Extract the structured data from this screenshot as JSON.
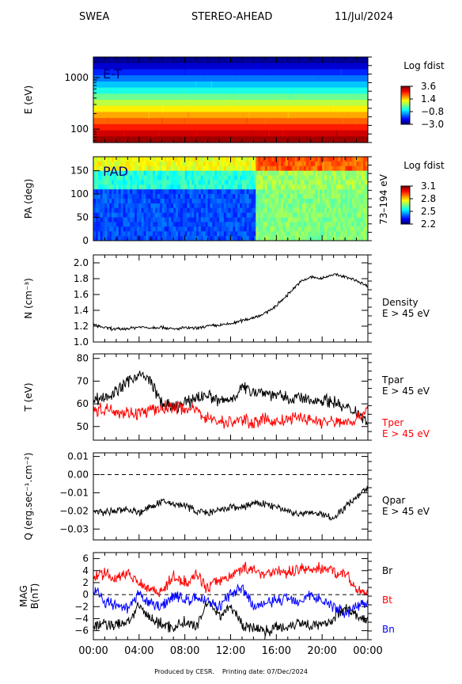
{
  "header": {
    "instrument": "SWEA",
    "spacecraft": "STEREO-AHEAD",
    "date": "11/Jul/2024"
  },
  "footer": {
    "produced": "Produced by CESR.",
    "printing": "Printing date: 07/Dec/2024"
  },
  "colors": {
    "black": "#000000",
    "red": "#ff0000",
    "blue": "#0000ff"
  },
  "chart_data": [
    {
      "type": "heatmap",
      "panel": "E-T",
      "label": "E-T",
      "ylabel": "E (eV)",
      "yscale": "log",
      "yticks": [
        100,
        1000
      ],
      "yticklabels": [
        "100",
        "1000"
      ],
      "colorbar": {
        "title": "Log fdist",
        "ticks": [
          3.6,
          1.4,
          -0.8,
          -3.0
        ],
        "ticklabels": [
          "3.6",
          "1.4",
          "−0.8",
          "−3.0"
        ],
        "range": [
          -3.0,
          3.6
        ]
      }
    },
    {
      "type": "heatmap",
      "panel": "PAD",
      "label": "PAD",
      "ylabel": "PA (deg)",
      "ylim": [
        0,
        180
      ],
      "yticks": [
        0,
        50,
        100,
        150
      ],
      "right_label": "73–194 eV",
      "colorbar": {
        "title": "Log fdist",
        "ticks": [
          3.1,
          2.8,
          2.5,
          2.2
        ],
        "ticklabels": [
          "3.1",
          "2.8",
          "2.5",
          "2.2"
        ],
        "range": [
          2.2,
          3.1
        ]
      }
    },
    {
      "type": "line",
      "panel": "density",
      "ylabel": "N (cm⁻³)",
      "ylim": [
        1.0,
        2.1
      ],
      "yticks": [
        1.0,
        1.2,
        1.4,
        1.6,
        1.8,
        2.0
      ],
      "yticklabels": [
        "1.0",
        "1.2",
        "1.4",
        "1.6",
        "1.8",
        "2.0"
      ],
      "series": [
        {
          "name": "Density",
          "sub": "E > 45 eV",
          "color": "#000000",
          "x": [
            0,
            1,
            2,
            3,
            4,
            5,
            6,
            7,
            8,
            9,
            10,
            11,
            12,
            13,
            14,
            15,
            16,
            17,
            18,
            19,
            20,
            21,
            22,
            23,
            24
          ],
          "values": [
            1.22,
            1.18,
            1.16,
            1.17,
            1.19,
            1.18,
            1.19,
            1.16,
            1.18,
            1.17,
            1.2,
            1.21,
            1.23,
            1.27,
            1.31,
            1.36,
            1.46,
            1.6,
            1.75,
            1.82,
            1.8,
            1.86,
            1.82,
            1.78,
            1.7
          ]
        }
      ]
    },
    {
      "type": "line",
      "panel": "temperature",
      "ylabel": "T (eV)",
      "ylim": [
        44,
        82
      ],
      "yticks": [
        50,
        60,
        70,
        80
      ],
      "yticklabels": [
        "50",
        "60",
        "70",
        "80"
      ],
      "series": [
        {
          "name": "Tpar",
          "sub": "E > 45 eV",
          "color": "#000000",
          "x": [
            0,
            1,
            2,
            3,
            4,
            5,
            6,
            7,
            8,
            9,
            10,
            11,
            12,
            13,
            14,
            15,
            16,
            17,
            18,
            19,
            20,
            21,
            22,
            23,
            24
          ],
          "values": [
            62,
            63,
            65,
            70,
            73,
            70,
            60,
            58,
            60,
            63,
            64,
            61,
            62,
            67,
            66,
            65,
            64,
            62,
            63,
            61,
            62,
            61,
            58,
            57,
            52
          ]
        },
        {
          "name": "Tper",
          "sub": "E > 45 eV",
          "color": "#ff0000",
          "x": [
            0,
            1,
            2,
            3,
            4,
            5,
            6,
            7,
            8,
            9,
            10,
            11,
            12,
            13,
            14,
            15,
            16,
            17,
            18,
            19,
            20,
            21,
            22,
            23,
            24
          ],
          "values": [
            57,
            58,
            57,
            56,
            56,
            57,
            58,
            59,
            58,
            57,
            54,
            52,
            52,
            53,
            52,
            53,
            52,
            53,
            54,
            53,
            52,
            52,
            52,
            53,
            58
          ]
        }
      ]
    },
    {
      "type": "line",
      "panel": "heat-flux",
      "ylabel": "Q (erg.sec⁻¹.cm⁻²)",
      "ylim": [
        -0.036,
        0.012
      ],
      "yticks": [
        0.01,
        0.0,
        -0.01,
        -0.02,
        -0.03
      ],
      "yticklabels": [
        "0.01",
        "0.00",
        "−0.01",
        "−0.02",
        "−0.03"
      ],
      "reference_line": 0.0,
      "series": [
        {
          "name": "Qpar",
          "sub": "E > 45 eV",
          "color": "#000000",
          "x": [
            0,
            1,
            2,
            3,
            4,
            5,
            6,
            7,
            8,
            9,
            10,
            11,
            12,
            13,
            14,
            15,
            16,
            17,
            18,
            19,
            20,
            21,
            22,
            23,
            24
          ],
          "values": [
            -0.02,
            -0.021,
            -0.02,
            -0.019,
            -0.021,
            -0.018,
            -0.015,
            -0.016,
            -0.017,
            -0.02,
            -0.021,
            -0.02,
            -0.018,
            -0.018,
            -0.016,
            -0.016,
            -0.018,
            -0.02,
            -0.022,
            -0.021,
            -0.022,
            -0.024,
            -0.018,
            -0.012,
            -0.007
          ]
        }
      ]
    },
    {
      "type": "line",
      "panel": "magnetic-field",
      "ylabel": "MAG B(nT)",
      "ylim": [
        -7.5,
        7.0
      ],
      "yticks": [
        6,
        4,
        2,
        0,
        -2,
        -4,
        -6
      ],
      "yticklabels": [
        "6",
        "4",
        "2",
        "0",
        "−2",
        "−4",
        "−6"
      ],
      "reference_line": 0,
      "series": [
        {
          "name": "Br",
          "color": "#000000",
          "x": [
            0,
            1,
            2,
            3,
            4,
            5,
            6,
            7,
            8,
            9,
            10,
            11,
            12,
            13,
            14,
            15,
            16,
            17,
            18,
            19,
            20,
            21,
            22,
            23,
            24
          ],
          "values": [
            -5.5,
            -4.8,
            -5.2,
            -4.5,
            -2,
            -4,
            -5,
            -5.5,
            -4.5,
            -5.5,
            -1,
            -3.5,
            -2,
            -5,
            -5.5,
            -6,
            -5.5,
            -5.3,
            -4.5,
            -5,
            -5.2,
            -4,
            -2,
            -3.5,
            -4.5
          ]
        },
        {
          "name": "Bt",
          "color": "#ff0000",
          "x": [
            0,
            1,
            2,
            3,
            4,
            5,
            6,
            7,
            8,
            9,
            10,
            11,
            12,
            13,
            14,
            15,
            16,
            17,
            18,
            19,
            20,
            21,
            22,
            23,
            24
          ],
          "values": [
            3,
            3.5,
            2.5,
            3.8,
            2,
            1,
            0.5,
            3,
            2,
            3.5,
            1,
            2.5,
            3,
            4.5,
            4,
            3.5,
            4,
            3.5,
            4.5,
            4,
            4.5,
            4,
            3.5,
            1,
            0
          ]
        },
        {
          "name": "Bn",
          "color": "#0000ff",
          "x": [
            0,
            1,
            2,
            3,
            4,
            5,
            6,
            7,
            8,
            9,
            10,
            11,
            12,
            13,
            14,
            15,
            16,
            17,
            18,
            19,
            20,
            21,
            22,
            23,
            24
          ],
          "values": [
            1,
            -1,
            -2,
            -2.5,
            0,
            -1.5,
            -2,
            0,
            -1,
            -0.5,
            -1,
            -2,
            0,
            1,
            -2,
            -1.5,
            -1,
            -0.5,
            -1,
            0,
            -1,
            -2,
            -3,
            -2,
            -1
          ]
        }
      ]
    }
  ],
  "time_axis": {
    "ticks": [
      0,
      4,
      8,
      12,
      16,
      20,
      24
    ],
    "ticklabels": [
      "00:00",
      "04:00",
      "08:00",
      "12:00",
      "16:00",
      "20:00",
      "00:00"
    ]
  }
}
